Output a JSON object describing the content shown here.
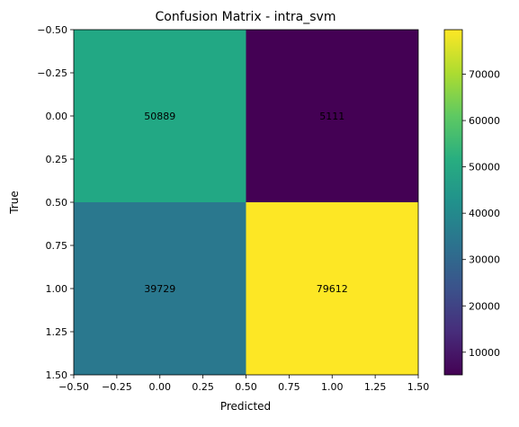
{
  "chart_data": {
    "type": "heatmap",
    "title": "Confusion Matrix - intra_svm",
    "xlabel": "Predicted",
    "ylabel": "True",
    "matrix": [
      [
        50889,
        5111
      ],
      [
        39729,
        79612
      ]
    ],
    "cell_labels": [
      [
        "50889",
        "5111"
      ],
      [
        "39729",
        "79612"
      ]
    ],
    "xlim": [
      -0.5,
      1.5
    ],
    "ylim": [
      1.5,
      -0.5
    ],
    "xticks": [
      "−0.50",
      "−0.25",
      "0.00",
      "0.25",
      "0.50",
      "0.75",
      "1.00",
      "1.25",
      "1.50"
    ],
    "yticks": [
      "−0.50",
      "−0.25",
      "0.00",
      "0.25",
      "0.50",
      "0.75",
      "1.00",
      "1.25",
      "1.50"
    ],
    "colorbar": {
      "vmin": 5111,
      "vmax": 79612,
      "ticks": [
        10000,
        20000,
        30000,
        40000,
        50000,
        60000,
        70000
      ],
      "tick_labels": [
        "10000",
        "20000",
        "30000",
        "40000",
        "50000",
        "60000",
        "70000"
      ]
    },
    "colormap": "viridis",
    "cell_colors": [
      [
        "#22a884",
        "#440154"
      ],
      [
        "#2a788e",
        "#fde725"
      ]
    ],
    "text_color": "#000000"
  }
}
